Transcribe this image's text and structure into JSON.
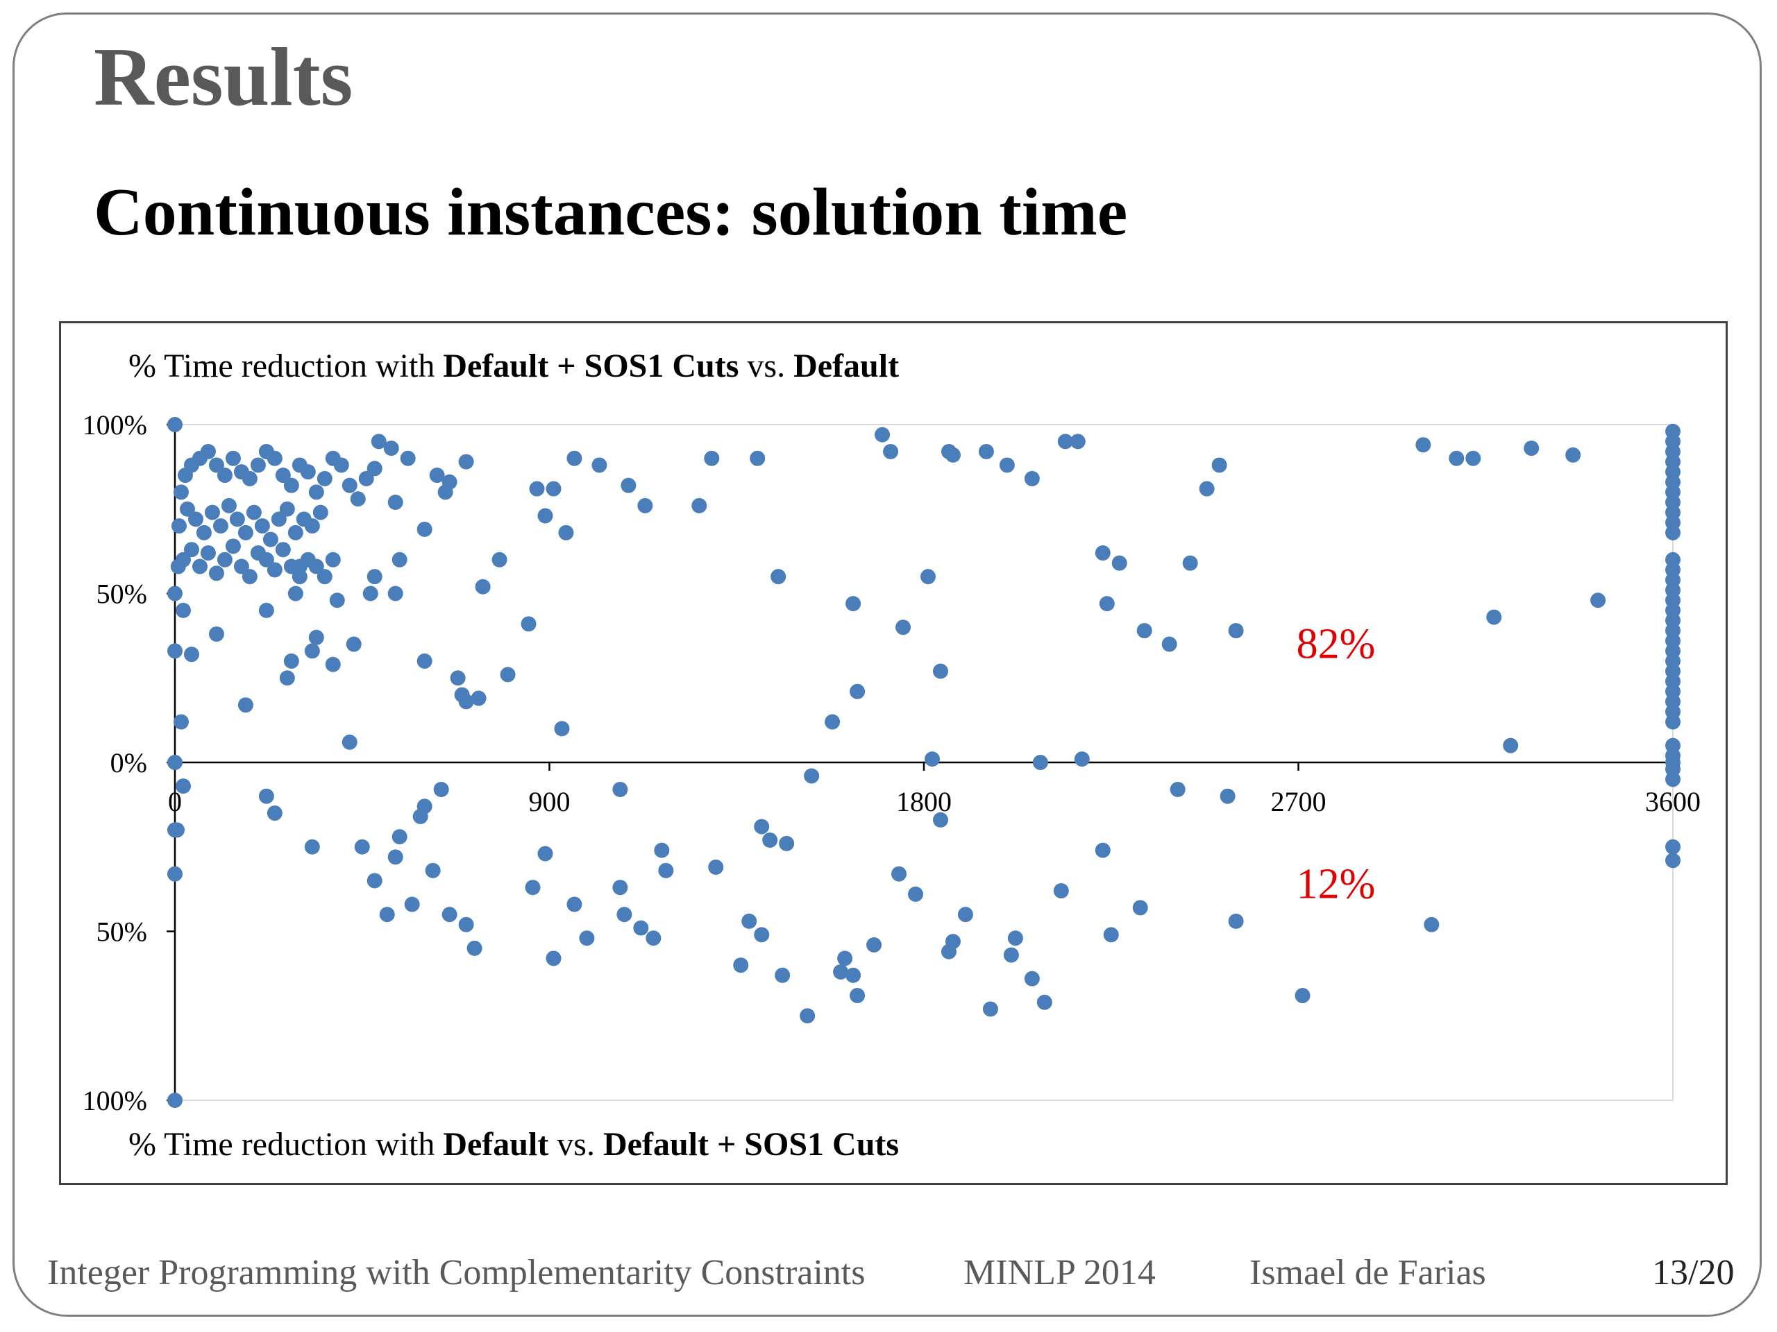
{
  "slide": {
    "title": "Results",
    "subtitle": "Continuous instances: solution time",
    "footer": {
      "left": "Integer Programming with Complementarity Constraints",
      "event": "MINLP 2014",
      "author": "Ismael de Farias",
      "page": "13/20"
    }
  },
  "chart_data": {
    "type": "scatter",
    "top_caption": {
      "pre": "% Time reduction with ",
      "b1": "Default + SOS1 Cuts",
      "mid": " vs. ",
      "b2": "Default"
    },
    "bottom_caption": {
      "pre": "% Time reduction with ",
      "b1": "Default",
      "mid": " vs. ",
      "b2": "Default + SOS1 Cuts"
    },
    "x_ticks": [
      "0",
      "900",
      "1800",
      "2700",
      "3600"
    ],
    "y_ticks": [
      "100%",
      "50%",
      "0%",
      "50%",
      "100%"
    ],
    "xlim": [
      0,
      3600
    ],
    "ylim": [
      -100,
      100
    ],
    "grid": false,
    "annotations": [
      {
        "text": "82%",
        "x": 2790,
        "y": 35,
        "color": "#e00000"
      },
      {
        "text": "12%",
        "x": 2790,
        "y": -36,
        "color": "#e00000"
      }
    ],
    "point_color": "#4a7ebb",
    "series": [
      {
        "points": [
          [
            0,
            100
          ],
          [
            0,
            0
          ],
          [
            0,
            -33
          ],
          [
            0,
            -100
          ],
          [
            0,
            33
          ],
          [
            0,
            50
          ],
          [
            5,
            -20
          ],
          [
            0,
            -20
          ],
          [
            15,
            12
          ],
          [
            8,
            58
          ],
          [
            20,
            45
          ],
          [
            40,
            32
          ],
          [
            15,
            80
          ],
          [
            25,
            85
          ],
          [
            40,
            88
          ],
          [
            60,
            90
          ],
          [
            80,
            92
          ],
          [
            100,
            88
          ],
          [
            120,
            85
          ],
          [
            140,
            90
          ],
          [
            160,
            86
          ],
          [
            180,
            84
          ],
          [
            200,
            88
          ],
          [
            220,
            92
          ],
          [
            240,
            90
          ],
          [
            260,
            85
          ],
          [
            280,
            82
          ],
          [
            300,
            88
          ],
          [
            320,
            86
          ],
          [
            340,
            80
          ],
          [
            360,
            84
          ],
          [
            380,
            90
          ],
          [
            400,
            88
          ],
          [
            420,
            82
          ],
          [
            440,
            78
          ],
          [
            460,
            84
          ],
          [
            480,
            87
          ],
          [
            10,
            70
          ],
          [
            30,
            75
          ],
          [
            50,
            72
          ],
          [
            70,
            68
          ],
          [
            90,
            74
          ],
          [
            110,
            70
          ],
          [
            130,
            76
          ],
          [
            150,
            72
          ],
          [
            170,
            68
          ],
          [
            190,
            74
          ],
          [
            210,
            70
          ],
          [
            230,
            66
          ],
          [
            250,
            72
          ],
          [
            270,
            75
          ],
          [
            290,
            68
          ],
          [
            310,
            72
          ],
          [
            330,
            70
          ],
          [
            350,
            74
          ],
          [
            20,
            60
          ],
          [
            40,
            63
          ],
          [
            60,
            58
          ],
          [
            80,
            62
          ],
          [
            100,
            56
          ],
          [
            120,
            60
          ],
          [
            140,
            64
          ],
          [
            160,
            58
          ],
          [
            180,
            55
          ],
          [
            200,
            62
          ],
          [
            220,
            60
          ],
          [
            240,
            57
          ],
          [
            260,
            63
          ],
          [
            280,
            58
          ],
          [
            300,
            55
          ],
          [
            320,
            60
          ],
          [
            340,
            58
          ],
          [
            360,
            55
          ],
          [
            380,
            60
          ],
          [
            100,
            38
          ],
          [
            170,
            17
          ],
          [
            220,
            45
          ],
          [
            270,
            25
          ],
          [
            280,
            30
          ],
          [
            290,
            50
          ],
          [
            300,
            58
          ],
          [
            330,
            33
          ],
          [
            340,
            37
          ],
          [
            380,
            29
          ],
          [
            390,
            48
          ],
          [
            420,
            6
          ],
          [
            430,
            35
          ],
          [
            470,
            50
          ],
          [
            480,
            55
          ],
          [
            490,
            95
          ],
          [
            520,
            93
          ],
          [
            530,
            50
          ],
          [
            530,
            77
          ],
          [
            540,
            60
          ],
          [
            560,
            90
          ],
          [
            600,
            69
          ],
          [
            600,
            30
          ],
          [
            630,
            85
          ],
          [
            650,
            80
          ],
          [
            660,
            83
          ],
          [
            680,
            25
          ],
          [
            690,
            20
          ],
          [
            700,
            18
          ],
          [
            700,
            89
          ],
          [
            730,
            19
          ],
          [
            740,
            52
          ],
          [
            780,
            60
          ],
          [
            800,
            26
          ],
          [
            850,
            41
          ],
          [
            870,
            81
          ],
          [
            890,
            73
          ],
          [
            910,
            81
          ],
          [
            930,
            10
          ],
          [
            940,
            68
          ],
          [
            960,
            90
          ],
          [
            1020,
            88
          ],
          [
            1090,
            82
          ],
          [
            1130,
            76
          ],
          [
            1260,
            76
          ],
          [
            1290,
            90
          ],
          [
            1400,
            90
          ],
          [
            1450,
            55
          ],
          [
            1630,
            47
          ],
          [
            1640,
            21
          ],
          [
            1700,
            97
          ],
          [
            1720,
            92
          ],
          [
            1750,
            40
          ],
          [
            1810,
            55
          ],
          [
            1840,
            27
          ],
          [
            1860,
            92
          ],
          [
            1870,
            91
          ],
          [
            1950,
            92
          ],
          [
            2000,
            88
          ],
          [
            2060,
            84
          ],
          [
            2140,
            95
          ],
          [
            2170,
            95
          ],
          [
            2230,
            62
          ],
          [
            2240,
            47
          ],
          [
            2270,
            59
          ],
          [
            2330,
            39
          ],
          [
            2390,
            35
          ],
          [
            2440,
            59
          ],
          [
            2480,
            81
          ],
          [
            2510,
            88
          ],
          [
            2550,
            39
          ],
          [
            3000,
            94
          ],
          [
            3080,
            90
          ],
          [
            3120,
            90
          ],
          [
            3170,
            43
          ],
          [
            3210,
            5
          ],
          [
            3260,
            93
          ],
          [
            3360,
            91
          ],
          [
            3420,
            48
          ],
          [
            1580,
            12
          ],
          [
            1820,
            1
          ],
          [
            2080,
            0
          ],
          [
            2180,
            1
          ],
          [
            20,
            -7
          ],
          [
            220,
            -10
          ],
          [
            240,
            -15
          ],
          [
            330,
            -25
          ],
          [
            450,
            -25
          ],
          [
            480,
            -35
          ],
          [
            510,
            -45
          ],
          [
            530,
            -28
          ],
          [
            540,
            -22
          ],
          [
            570,
            -42
          ],
          [
            590,
            -16
          ],
          [
            600,
            -13
          ],
          [
            620,
            -32
          ],
          [
            640,
            -8
          ],
          [
            660,
            -45
          ],
          [
            700,
            -48
          ],
          [
            720,
            -55
          ],
          [
            860,
            -37
          ],
          [
            890,
            -27
          ],
          [
            910,
            -58
          ],
          [
            960,
            -42
          ],
          [
            990,
            -52
          ],
          [
            1070,
            -8
          ],
          [
            1070,
            -37
          ],
          [
            1080,
            -45
          ],
          [
            1120,
            -49
          ],
          [
            1150,
            -52
          ],
          [
            1170,
            -26
          ],
          [
            1180,
            -32
          ],
          [
            1300,
            -31
          ],
          [
            1360,
            -60
          ],
          [
            1380,
            -47
          ],
          [
            1410,
            -51
          ],
          [
            1410,
            -19
          ],
          [
            1430,
            -23
          ],
          [
            1460,
            -63
          ],
          [
            1470,
            -24
          ],
          [
            1520,
            -75
          ],
          [
            1530,
            -4
          ],
          [
            1600,
            -62
          ],
          [
            1610,
            -58
          ],
          [
            1630,
            -63
          ],
          [
            1640,
            -69
          ],
          [
            1680,
            -54
          ],
          [
            1740,
            -33
          ],
          [
            1780,
            -39
          ],
          [
            1840,
            -17
          ],
          [
            1860,
            -56
          ],
          [
            1870,
            -53
          ],
          [
            1900,
            -45
          ],
          [
            1960,
            -73
          ],
          [
            2010,
            -57
          ],
          [
            2020,
            -52
          ],
          [
            2060,
            -64
          ],
          [
            2090,
            -71
          ],
          [
            2130,
            -38
          ],
          [
            2250,
            -51
          ],
          [
            2230,
            -26
          ],
          [
            2320,
            -43
          ],
          [
            2410,
            -8
          ],
          [
            2530,
            -10
          ],
          [
            2550,
            -47
          ],
          [
            2710,
            -69
          ],
          [
            3020,
            -48
          ],
          [
            3600,
            98
          ],
          [
            3600,
            95
          ],
          [
            3600,
            92
          ],
          [
            3600,
            89
          ],
          [
            3600,
            86
          ],
          [
            3600,
            83
          ],
          [
            3600,
            80
          ],
          [
            3600,
            77
          ],
          [
            3600,
            74
          ],
          [
            3600,
            71
          ],
          [
            3600,
            68
          ],
          [
            3600,
            60
          ],
          [
            3600,
            57
          ],
          [
            3600,
            54
          ],
          [
            3600,
            51
          ],
          [
            3600,
            48
          ],
          [
            3600,
            45
          ],
          [
            3600,
            42
          ],
          [
            3600,
            39
          ],
          [
            3600,
            36
          ],
          [
            3600,
            33
          ],
          [
            3600,
            30
          ],
          [
            3600,
            27
          ],
          [
            3600,
            24
          ],
          [
            3600,
            21
          ],
          [
            3600,
            18
          ],
          [
            3600,
            15
          ],
          [
            3600,
            12
          ],
          [
            3600,
            5
          ],
          [
            3600,
            2
          ],
          [
            3600,
            0
          ],
          [
            3600,
            -2
          ],
          [
            3600,
            -5
          ],
          [
            3600,
            -25
          ],
          [
            3600,
            -29
          ]
        ]
      }
    ]
  }
}
